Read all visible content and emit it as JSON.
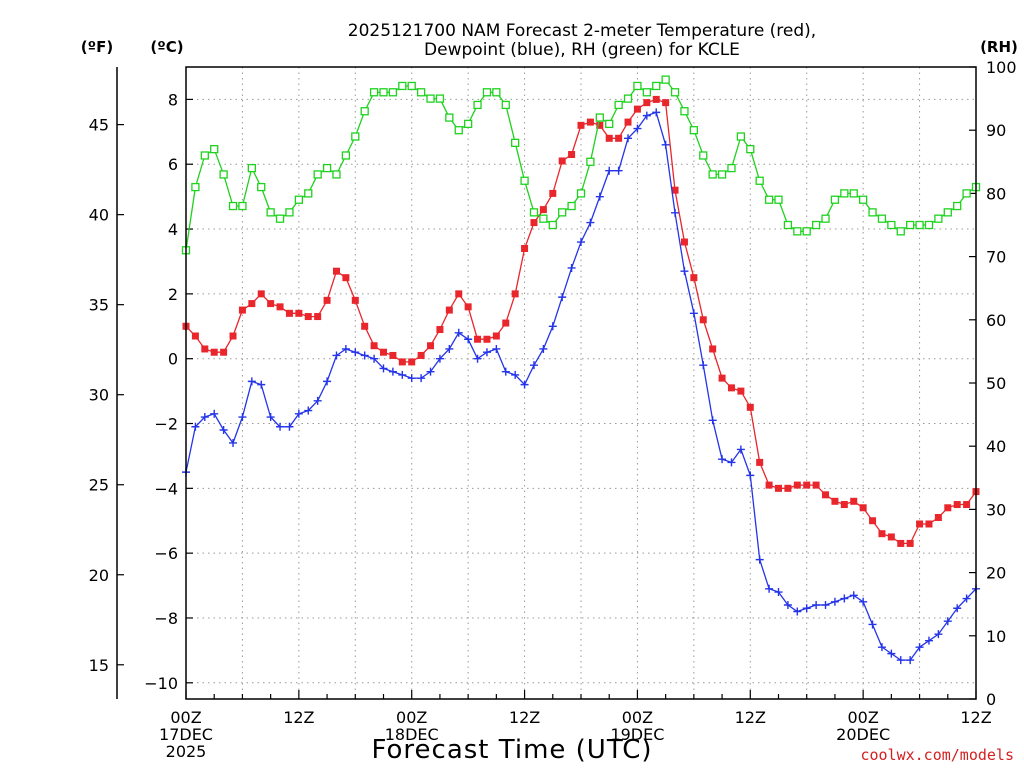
{
  "chart_data": {
    "type": "line",
    "title_line1": "2025121700 NAM Forecast 2-meter Temperature (red),",
    "title_line2": "Dewpoint (blue), RH (green) for KCLE",
    "unit_f": "(ºF)",
    "unit_c": "(ºC)",
    "unit_rh": "(RH)",
    "xlabel": "Forecast Time (UTC)",
    "credit": "coolwx.com/models",
    "x_range_hours": [
      0,
      84
    ],
    "y_range_c": [
      -10.5,
      9.0
    ],
    "rh_range": [
      0,
      100
    ],
    "f_ticks": [
      15,
      20,
      25,
      30,
      35,
      40,
      45
    ],
    "c_ticks": [
      -10,
      -8,
      -6,
      -4,
      -2,
      0,
      2,
      4,
      6,
      8
    ],
    "rh_ticks": [
      0,
      10,
      20,
      30,
      40,
      50,
      60,
      70,
      80,
      90,
      100
    ],
    "x_ticks": [
      {
        "hour": 0,
        "lines": [
          "00Z",
          "17DEC",
          "2025"
        ]
      },
      {
        "hour": 12,
        "lines": [
          "12Z"
        ]
      },
      {
        "hour": 24,
        "lines": [
          "00Z",
          "18DEC"
        ]
      },
      {
        "hour": 36,
        "lines": [
          "12Z"
        ]
      },
      {
        "hour": 48,
        "lines": [
          "00Z",
          "19DEC"
        ]
      },
      {
        "hour": 60,
        "lines": [
          "12Z"
        ]
      },
      {
        "hour": 72,
        "lines": [
          "00Z",
          "20DEC"
        ]
      },
      {
        "hour": 84,
        "lines": [
          "12Z"
        ]
      }
    ],
    "series": [
      {
        "name": "Temperature (°C)",
        "color": "#e8262c",
        "marker": "square-filled",
        "axis": "celsius",
        "x": [
          0,
          1,
          2,
          3,
          4,
          5,
          6,
          7,
          8,
          9,
          10,
          11,
          12,
          13,
          14,
          15,
          16,
          17,
          18,
          19,
          20,
          21,
          22,
          23,
          24,
          25,
          26,
          27,
          28,
          29,
          30,
          31,
          32,
          33,
          34,
          35,
          36,
          37,
          38,
          39,
          40,
          41,
          42,
          43,
          44,
          45,
          46,
          47,
          48,
          49,
          50,
          51,
          52,
          53,
          54,
          55,
          56,
          57,
          58,
          59,
          60,
          61,
          62,
          63,
          64,
          65,
          66,
          67,
          68,
          69,
          70,
          71,
          72,
          73,
          74,
          75,
          76,
          77,
          78,
          79,
          80,
          81,
          82,
          83,
          84
        ],
        "values": [
          1.0,
          0.7,
          0.3,
          0.2,
          0.2,
          0.7,
          1.5,
          1.7,
          2.0,
          1.7,
          1.6,
          1.4,
          1.4,
          1.3,
          1.3,
          1.8,
          2.7,
          2.5,
          1.8,
          1.0,
          0.4,
          0.2,
          0.1,
          -0.1,
          -0.1,
          0.1,
          0.4,
          0.9,
          1.5,
          2.0,
          1.6,
          0.6,
          0.6,
          0.7,
          1.1,
          2.0,
          3.4,
          4.2,
          4.6,
          5.1,
          6.1,
          6.3,
          7.2,
          7.3,
          7.2,
          6.8,
          6.8,
          7.3,
          7.7,
          7.9,
          8.0,
          7.9,
          5.2,
          3.6,
          2.5,
          1.2,
          0.3,
          -0.6,
          -0.9,
          -1.0,
          -1.5,
          -3.2,
          -3.9,
          -4.0,
          -4.0,
          -3.9,
          -3.9,
          -3.9,
          -4.2,
          -4.4,
          -4.5,
          -4.4,
          -4.6,
          -5.0,
          -5.4,
          -5.5,
          -5.7,
          -5.7,
          -5.1,
          -5.1,
          -4.9,
          -4.6,
          -4.5,
          -4.5,
          -4.1
        ]
      },
      {
        "name": "Dewpoint (°C)",
        "color": "#2434e8",
        "marker": "plus",
        "axis": "celsius",
        "x": [
          0,
          1,
          2,
          3,
          4,
          5,
          6,
          7,
          8,
          9,
          10,
          11,
          12,
          13,
          14,
          15,
          16,
          17,
          18,
          19,
          20,
          21,
          22,
          23,
          24,
          25,
          26,
          27,
          28,
          29,
          30,
          31,
          32,
          33,
          34,
          35,
          36,
          37,
          38,
          39,
          40,
          41,
          42,
          43,
          44,
          45,
          46,
          47,
          48,
          49,
          50,
          51,
          52,
          53,
          54,
          55,
          56,
          57,
          58,
          59,
          60,
          61,
          62,
          63,
          64,
          65,
          66,
          67,
          68,
          69,
          70,
          71,
          72,
          73,
          74,
          75,
          76,
          77,
          78,
          79,
          80,
          81,
          82,
          83,
          84
        ],
        "values": [
          -3.5,
          -2.1,
          -1.8,
          -1.7,
          -2.2,
          -2.6,
          -1.8,
          -0.7,
          -0.8,
          -1.8,
          -2.1,
          -2.1,
          -1.7,
          -1.6,
          -1.3,
          -0.7,
          0.1,
          0.3,
          0.2,
          0.1,
          0.0,
          -0.3,
          -0.4,
          -0.5,
          -0.6,
          -0.6,
          -0.4,
          0.0,
          0.3,
          0.8,
          0.6,
          0.0,
          0.2,
          0.3,
          -0.4,
          -0.5,
          -0.8,
          -0.2,
          0.3,
          1.0,
          1.9,
          2.8,
          3.6,
          4.2,
          5.0,
          5.8,
          5.8,
          6.8,
          7.1,
          7.5,
          7.6,
          6.6,
          4.5,
          2.7,
          1.4,
          -0.2,
          -1.9,
          -3.1,
          -3.2,
          -2.8,
          -3.6,
          -6.2,
          -7.1,
          -7.2,
          -7.6,
          -7.8,
          -7.7,
          -7.6,
          -7.6,
          -7.5,
          -7.4,
          -7.3,
          -7.5,
          -8.2,
          -8.9,
          -9.1,
          -9.3,
          -9.3,
          -8.9,
          -8.7,
          -8.5,
          -8.1,
          -7.7,
          -7.4,
          -7.1
        ]
      },
      {
        "name": "Relative Humidity (%)",
        "color": "#1ed21e",
        "marker": "square-open",
        "axis": "rh",
        "x": [
          0,
          1,
          2,
          3,
          4,
          5,
          6,
          7,
          8,
          9,
          10,
          11,
          12,
          13,
          14,
          15,
          16,
          17,
          18,
          19,
          20,
          21,
          22,
          23,
          24,
          25,
          26,
          27,
          28,
          29,
          30,
          31,
          32,
          33,
          34,
          35,
          36,
          37,
          38,
          39,
          40,
          41,
          42,
          43,
          44,
          45,
          46,
          47,
          48,
          49,
          50,
          51,
          52,
          53,
          54,
          55,
          56,
          57,
          58,
          59,
          60,
          61,
          62,
          63,
          64,
          65,
          66,
          67,
          68,
          69,
          70,
          71,
          72,
          73,
          74,
          75,
          76,
          77,
          78,
          79,
          80,
          81,
          82,
          83,
          84
        ],
        "values": [
          71,
          81,
          86,
          87,
          83,
          78,
          78,
          84,
          81,
          77,
          76,
          77,
          79,
          80,
          83,
          84,
          83,
          86,
          89,
          93,
          96,
          96,
          96,
          97,
          97,
          96,
          95,
          95,
          92,
          90,
          91,
          94,
          96,
          96,
          94,
          88,
          82,
          77,
          76,
          75,
          77,
          78,
          80,
          85,
          92,
          91,
          94,
          95,
          97,
          96,
          97,
          98,
          96,
          93,
          90,
          86,
          83,
          83,
          84,
          89,
          87,
          82,
          79,
          79,
          75,
          74,
          74,
          75,
          76,
          79,
          80,
          80,
          79,
          77,
          76,
          75,
          74,
          75,
          75,
          75,
          76,
          77,
          78,
          80,
          81
        ]
      }
    ]
  }
}
